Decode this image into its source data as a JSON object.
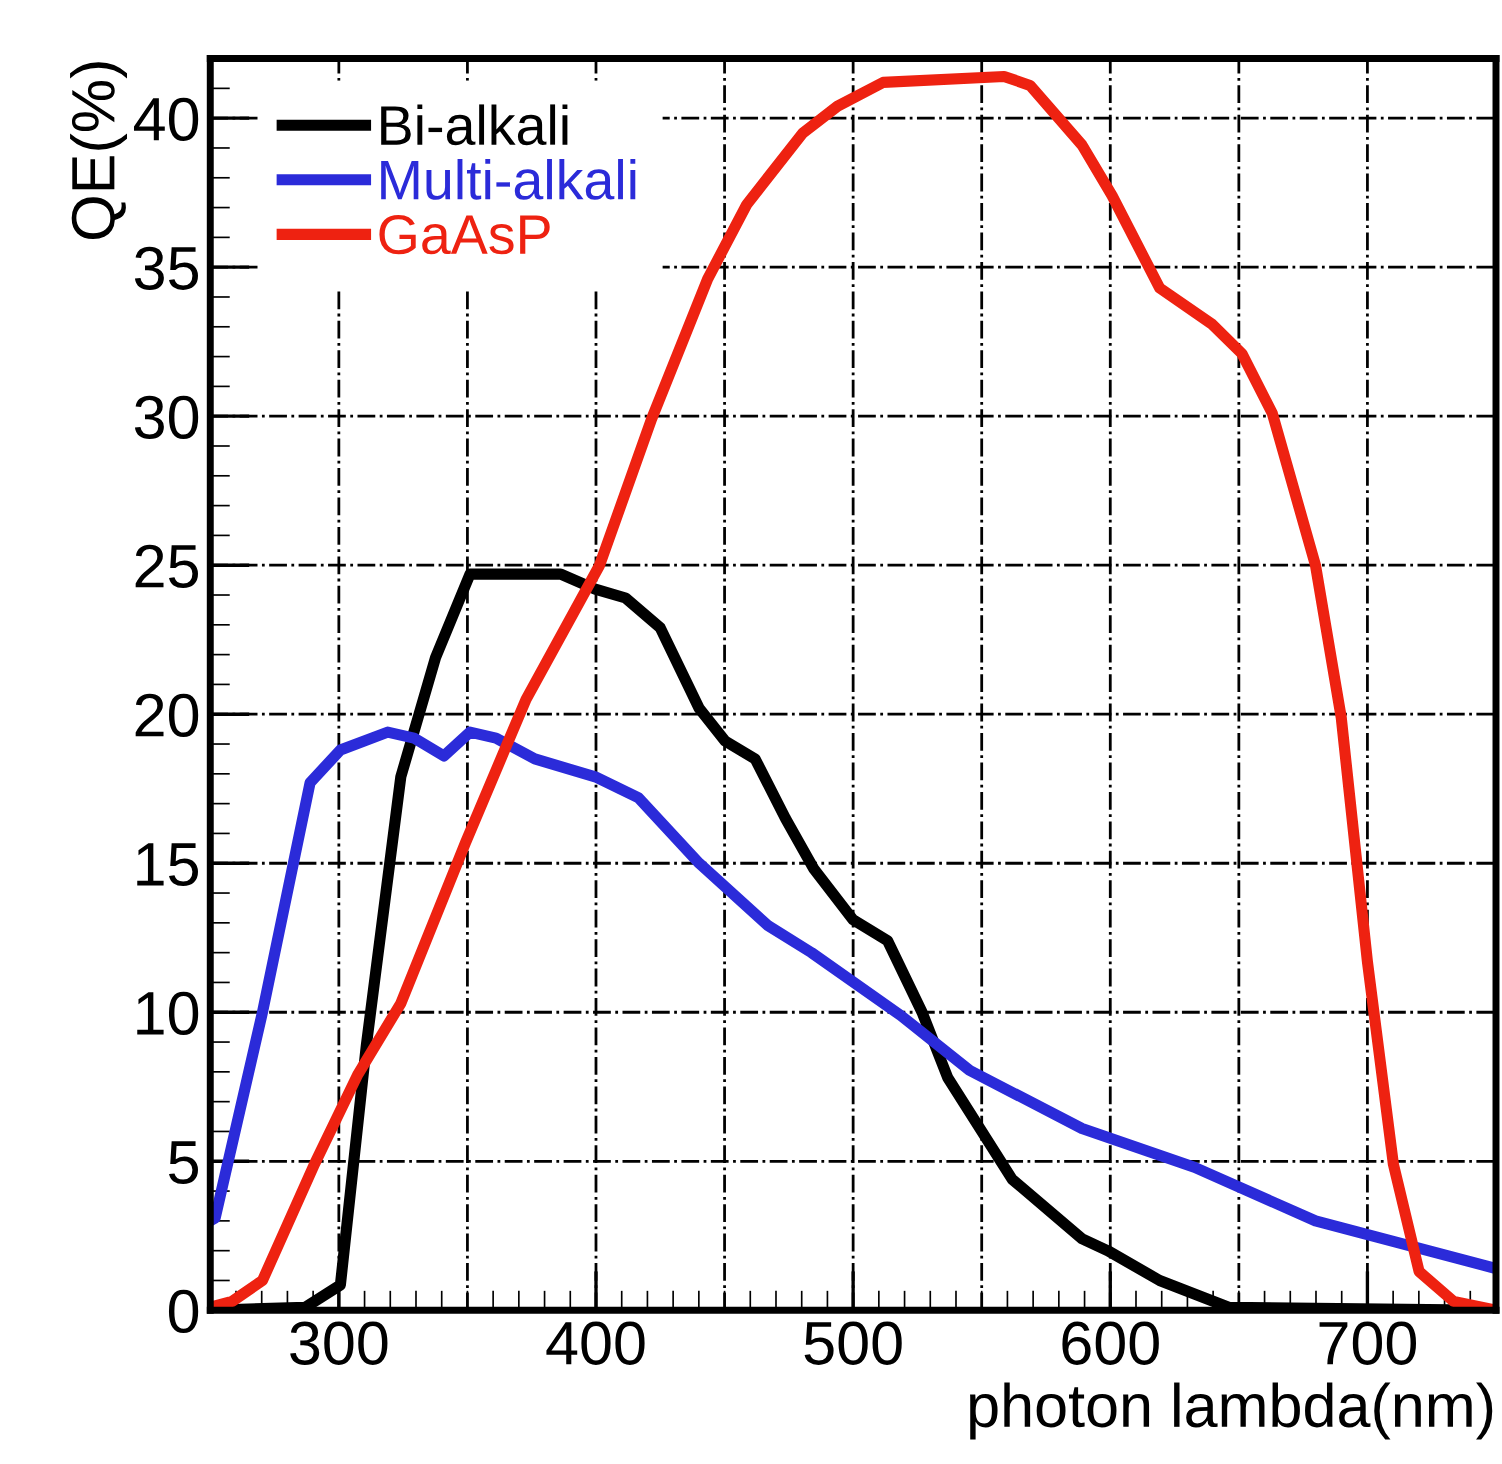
{
  "chart_data": {
    "type": "line",
    "xlabel": "photon lambda(nm)",
    "ylabel": "QE(%)",
    "xlim": [
      250,
      750
    ],
    "ylim": [
      0,
      42
    ],
    "xticks": [
      300,
      400,
      500,
      600,
      700
    ],
    "yticks": [
      0,
      5,
      10,
      15,
      20,
      25,
      30,
      35,
      40
    ],
    "grid": true,
    "legend": "top left",
    "line_style": "solid",
    "marker": "none",
    "series": [
      {
        "name": "Bi-alkali",
        "color": "#000000",
        "x": [
          250,
          287,
          300.6,
          310.7,
          324.1,
          337.6,
          351,
          386.3,
          399.7,
          411.5,
          425,
          440.1,
          450.2,
          461.9,
          473.7,
          484.8,
          500,
          513.4,
          526.8,
          536.8,
          561.8,
          589,
          599,
          619.2,
          646,
          750
        ],
        "values": [
          0,
          0.1,
          0.85,
          8.9,
          17.9,
          21.9,
          24.7,
          24.7,
          24.2,
          23.9,
          22.9,
          20.2,
          19.1,
          18.5,
          16.5,
          14.8,
          13.1,
          12.4,
          10,
          7.8,
          4.4,
          2.4,
          2.0,
          1.0,
          0.1,
          0
        ]
      },
      {
        "name": "Multi-alkali",
        "color": "#2b2bd9",
        "x": [
          250,
          251.9,
          270.3,
          288.8,
          300.6,
          319,
          329.2,
          340.9,
          351,
          361.1,
          376.2,
          399.7,
          416.5,
          440.1,
          467,
          483.8,
          518.4,
          545.3,
          589,
          632.7,
          679.8,
          750
        ],
        "values": [
          3,
          3.1,
          10,
          17.7,
          18.8,
          19.4,
          19.2,
          18.6,
          19.4,
          19.2,
          18.5,
          17.9,
          17.2,
          15,
          12.9,
          12,
          9.9,
          8.05,
          6.1,
          4.8,
          3.0,
          1.4
        ]
      },
      {
        "name": "GaAsP",
        "color": "#ee2211",
        "x": [
          250,
          258.5,
          270.3,
          290.5,
          307.3,
          324.1,
          349.3,
          372.8,
          401.4,
          421.6,
          443.4,
          458.6,
          480.4,
          493.9,
          511.7,
          558.7,
          568.8,
          589,
          600.7,
          619.2,
          639.4,
          651.2,
          663,
          679.8,
          689.8,
          700,
          710.1,
          720.1,
          733.5,
          750
        ],
        "values": [
          0.1,
          0.3,
          1.0,
          4.9,
          7.9,
          10.3,
          15.7,
          20.5,
          25,
          29.9,
          34.6,
          37.1,
          39.5,
          40.4,
          41.2,
          41.4,
          41.1,
          39.1,
          37.4,
          34.3,
          33.1,
          32.1,
          30.1,
          25,
          19.9,
          11.7,
          4.9,
          1.3,
          0.3,
          0
        ]
      }
    ]
  }
}
